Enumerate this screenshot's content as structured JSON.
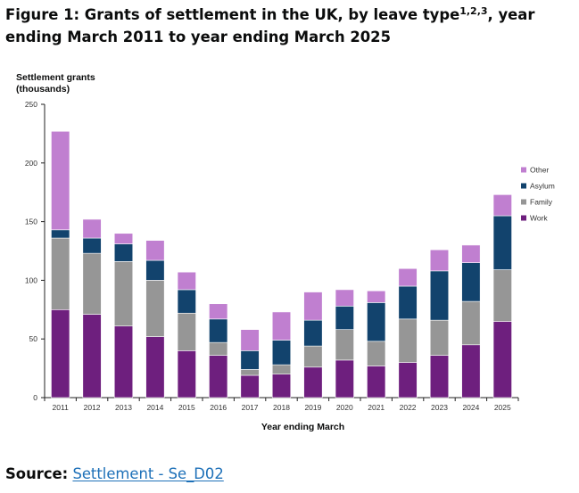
{
  "figure": {
    "title_main": "Figure 1: Grants of settlement in the UK, by leave type",
    "title_sup": "1,2,3",
    "title_rest": ", year ending March 2011 to year ending March 2025"
  },
  "source": {
    "label": "Source:",
    "link_text": "Settlement - Se_D02"
  },
  "chart_data": {
    "type": "bar",
    "stacked": true,
    "ylabel": [
      "Settlement grants",
      "(thousands)"
    ],
    "xlabel": "Year ending March",
    "ylim": [
      0,
      250
    ],
    "yticks": [
      0,
      50,
      100,
      150,
      200,
      250
    ],
    "grid": false,
    "legend_position": "right",
    "categories": [
      "2011",
      "2012",
      "2013",
      "2014",
      "2015",
      "2016",
      "2017",
      "2018",
      "2019",
      "2020",
      "2021",
      "2022",
      "2023",
      "2024",
      "2025"
    ],
    "series": [
      {
        "name": "Work",
        "color": "#6e1f7e",
        "values": [
          75,
          71,
          61,
          52,
          40,
          36,
          19,
          20,
          26,
          32,
          27,
          30,
          36,
          45,
          65
        ]
      },
      {
        "name": "Family",
        "color": "#969696",
        "values": [
          61,
          52,
          55,
          48,
          32,
          11,
          5,
          8,
          18,
          26,
          21,
          37,
          30,
          37,
          44
        ]
      },
      {
        "name": "Asylum",
        "color": "#12436d",
        "values": [
          7,
          13,
          15,
          17,
          20,
          20,
          16,
          21,
          22,
          20,
          33,
          28,
          42,
          33,
          46
        ]
      },
      {
        "name": "Other",
        "color": "#c07fd0",
        "values": [
          84,
          16,
          9,
          17,
          15,
          13,
          18,
          24,
          24,
          14,
          10,
          15,
          18,
          15,
          18
        ]
      }
    ]
  }
}
